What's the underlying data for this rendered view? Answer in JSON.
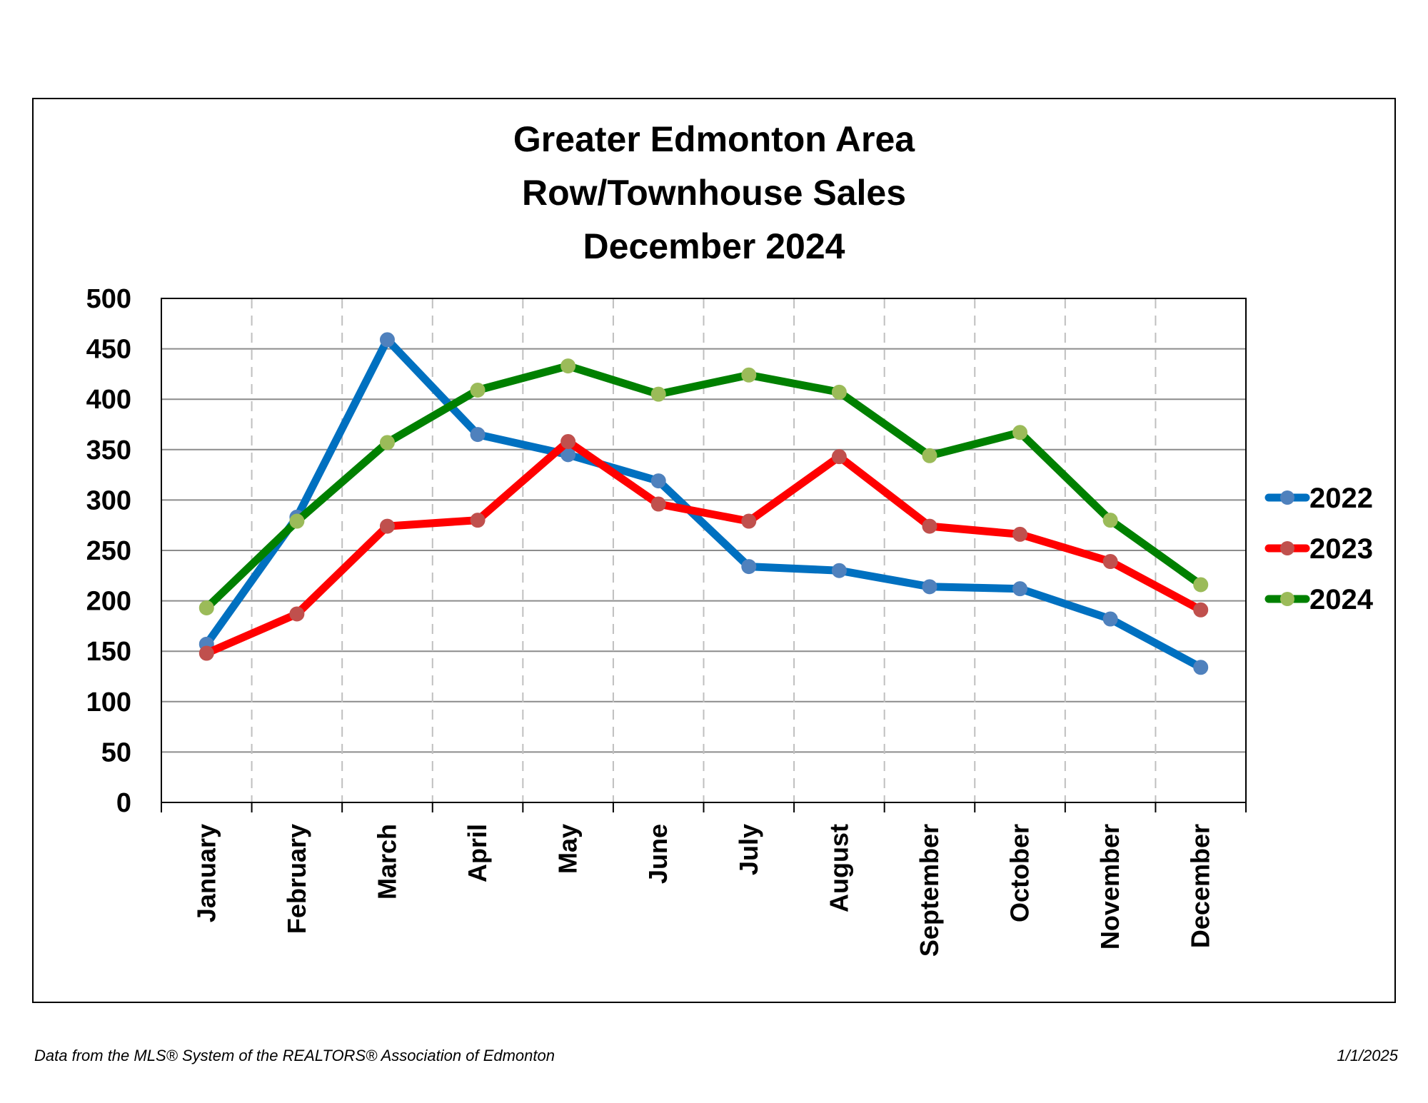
{
  "chart_data": {
    "type": "line",
    "title": [
      "Greater Edmonton Area",
      "Row/Townhouse Sales",
      "December 2024"
    ],
    "categories": [
      "January",
      "February",
      "March",
      "April",
      "May",
      "June",
      "July",
      "August",
      "September",
      "October",
      "November",
      "December"
    ],
    "series": [
      {
        "name": "2022",
        "color": "#0070C0",
        "marker_color": "#4F81BD",
        "values": [
          157,
          283,
          459,
          365,
          345,
          319,
          234,
          230,
          214,
          212,
          182,
          134
        ]
      },
      {
        "name": "2023",
        "color": "#FF0000",
        "marker_color": "#C0504D",
        "values": [
          148,
          187,
          274,
          280,
          358,
          296,
          279,
          343,
          274,
          266,
          239,
          191
        ]
      },
      {
        "name": "2024",
        "color": "#008000",
        "marker_color": "#9BBB59",
        "values": [
          193,
          279,
          357,
          409,
          433,
          405,
          424,
          407,
          344,
          367,
          280,
          216
        ]
      }
    ],
    "ylim": [
      0,
      500
    ],
    "yticks": [
      0,
      50,
      100,
      150,
      200,
      250,
      300,
      350,
      400,
      450,
      500
    ],
    "xlabel": "",
    "ylabel": "",
    "grid": {
      "horizontal": "solid",
      "vertical": "dashed"
    },
    "legend_position": "right"
  },
  "footer": {
    "source": "Data from the MLS® System of the REALTORS® Association of Edmonton",
    "date": "1/1/2025"
  }
}
